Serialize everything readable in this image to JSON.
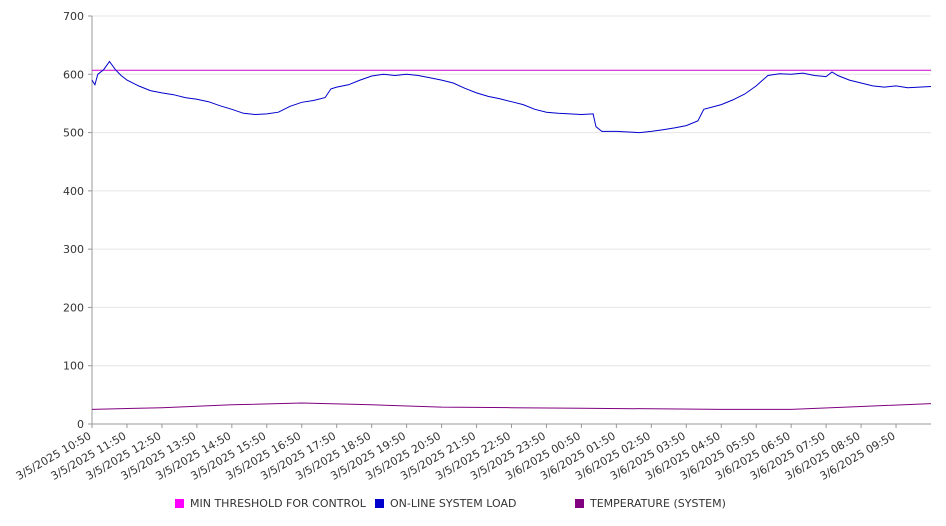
{
  "chart_data": {
    "type": "line",
    "ylim": [
      0,
      700
    ],
    "yticks": [
      0,
      100,
      200,
      300,
      400,
      500,
      600,
      700
    ],
    "x_labels": [
      "3/5/2025 10:50",
      "3/5/2025 11:50",
      "3/5/2025 12:50",
      "3/5/2025 13:50",
      "3/5/2025 14:50",
      "3/5/2025 15:50",
      "3/5/2025 16:50",
      "3/5/2025 17:50",
      "3/5/2025 18:50",
      "3/5/2025 19:50",
      "3/5/2025 20:50",
      "3/5/2025 21:50",
      "3/5/2025 22:50",
      "3/5/2025 23:50",
      "3/6/2025 00:50",
      "3/6/2025 01:50",
      "3/6/2025 02:50",
      "3/6/2025 03:50",
      "3/6/2025 04:50",
      "3/6/2025 05:50",
      "3/6/2025 06:50",
      "3/6/2025 07:50",
      "3/6/2025 08:50",
      "3/6/2025 09:50"
    ],
    "x_start": "3/5/2025 10:50",
    "x_end": "3/6/2025 10:50",
    "series": [
      {
        "name": "MIN THRESHOLD FOR CONTROL",
        "color": "#cc00cc",
        "points": [
          [
            "3/5/2025 10:50",
            607
          ],
          [
            "3/6/2025 10:50",
            607
          ]
        ]
      },
      {
        "name": "ON-LINE SYSTEM LOAD",
        "color": "#0000cc",
        "points": [
          [
            "3/5/2025 10:50",
            590
          ],
          [
            "3/5/2025 10:55",
            582
          ],
          [
            "3/5/2025 11:00",
            600
          ],
          [
            "3/5/2025 11:10",
            608
          ],
          [
            "3/5/2025 11:20",
            622
          ],
          [
            "3/5/2025 11:30",
            608
          ],
          [
            "3/5/2025 11:40",
            598
          ],
          [
            "3/5/2025 11:50",
            590
          ],
          [
            "3/5/2025 12:10",
            580
          ],
          [
            "3/5/2025 12:30",
            572
          ],
          [
            "3/5/2025 12:50",
            568
          ],
          [
            "3/5/2025 13:10",
            565
          ],
          [
            "3/5/2025 13:30",
            560
          ],
          [
            "3/5/2025 13:50",
            557
          ],
          [
            "3/5/2025 14:10",
            553
          ],
          [
            "3/5/2025 14:30",
            546
          ],
          [
            "3/5/2025 14:50",
            540
          ],
          [
            "3/5/2025 15:10",
            533
          ],
          [
            "3/5/2025 15:30",
            531
          ],
          [
            "3/5/2025 15:50",
            532
          ],
          [
            "3/5/2025 16:10",
            535
          ],
          [
            "3/5/2025 16:30",
            545
          ],
          [
            "3/5/2025 16:50",
            552
          ],
          [
            "3/5/2025 17:10",
            555
          ],
          [
            "3/5/2025 17:30",
            560
          ],
          [
            "3/5/2025 17:40",
            575
          ],
          [
            "3/5/2025 17:50",
            578
          ],
          [
            "3/5/2025 18:10",
            582
          ],
          [
            "3/5/2025 18:30",
            590
          ],
          [
            "3/5/2025 18:50",
            597
          ],
          [
            "3/5/2025 19:10",
            600
          ],
          [
            "3/5/2025 19:30",
            598
          ],
          [
            "3/5/2025 19:50",
            600
          ],
          [
            "3/5/2025 20:10",
            598
          ],
          [
            "3/5/2025 20:30",
            594
          ],
          [
            "3/5/2025 20:50",
            590
          ],
          [
            "3/5/2025 21:10",
            585
          ],
          [
            "3/5/2025 21:30",
            576
          ],
          [
            "3/5/2025 21:50",
            568
          ],
          [
            "3/5/2025 22:10",
            562
          ],
          [
            "3/5/2025 22:30",
            558
          ],
          [
            "3/5/2025 22:50",
            553
          ],
          [
            "3/5/2025 23:10",
            548
          ],
          [
            "3/5/2025 23:30",
            540
          ],
          [
            "3/5/2025 23:50",
            535
          ],
          [
            "3/6/2025 00:10",
            533
          ],
          [
            "3/6/2025 00:30",
            532
          ],
          [
            "3/6/2025 00:50",
            531
          ],
          [
            "3/6/2025 01:10",
            532
          ],
          [
            "3/6/2025 01:15",
            510
          ],
          [
            "3/6/2025 01:25",
            502
          ],
          [
            "3/6/2025 01:50",
            502
          ],
          [
            "3/6/2025 02:10",
            501
          ],
          [
            "3/6/2025 02:30",
            500
          ],
          [
            "3/6/2025 02:50",
            502
          ],
          [
            "3/6/2025 03:10",
            505
          ],
          [
            "3/6/2025 03:30",
            508
          ],
          [
            "3/6/2025 03:50",
            512
          ],
          [
            "3/6/2025 04:10",
            520
          ],
          [
            "3/6/2025 04:20",
            540
          ],
          [
            "3/6/2025 04:50",
            548
          ],
          [
            "3/6/2025 05:10",
            556
          ],
          [
            "3/6/2025 05:30",
            566
          ],
          [
            "3/6/2025 05:50",
            580
          ],
          [
            "3/6/2025 06:10",
            598
          ],
          [
            "3/6/2025 06:30",
            601
          ],
          [
            "3/6/2025 06:50",
            600
          ],
          [
            "3/6/2025 07:10",
            602
          ],
          [
            "3/6/2025 07:30",
            598
          ],
          [
            "3/6/2025 07:50",
            596
          ],
          [
            "3/6/2025 08:00",
            604
          ],
          [
            "3/6/2025 08:10",
            598
          ],
          [
            "3/6/2025 08:30",
            590
          ],
          [
            "3/6/2025 08:50",
            585
          ],
          [
            "3/6/2025 09:10",
            580
          ],
          [
            "3/6/2025 09:30",
            578
          ],
          [
            "3/6/2025 09:50",
            580
          ],
          [
            "3/6/2025 10:10",
            577
          ],
          [
            "3/6/2025 10:30",
            578
          ],
          [
            "3/6/2025 10:50",
            579
          ]
        ]
      },
      {
        "name": "TEMPERATURE (SYSTEM)",
        "color": "#800080",
        "points": [
          [
            "3/5/2025 10:50",
            25
          ],
          [
            "3/5/2025 12:50",
            28
          ],
          [
            "3/5/2025 14:50",
            33
          ],
          [
            "3/5/2025 16:50",
            36
          ],
          [
            "3/5/2025 18:50",
            33
          ],
          [
            "3/5/2025 20:50",
            29
          ],
          [
            "3/5/2025 22:50",
            28
          ],
          [
            "3/6/2025 00:50",
            27
          ],
          [
            "3/6/2025 02:50",
            26
          ],
          [
            "3/6/2025 04:50",
            25
          ],
          [
            "3/6/2025 06:50",
            25
          ],
          [
            "3/6/2025 08:50",
            30
          ],
          [
            "3/6/2025 10:50",
            35
          ]
        ]
      }
    ],
    "grid": true,
    "legend_position": "bottom"
  },
  "legend": {
    "items": [
      {
        "label": "MIN THRESHOLD FOR CONTROL",
        "color": "#ff00ff"
      },
      {
        "label": "ON-LINE SYSTEM LOAD",
        "color": "#0000cc"
      },
      {
        "label": "TEMPERATURE (SYSTEM)",
        "color": "#800080"
      }
    ]
  }
}
